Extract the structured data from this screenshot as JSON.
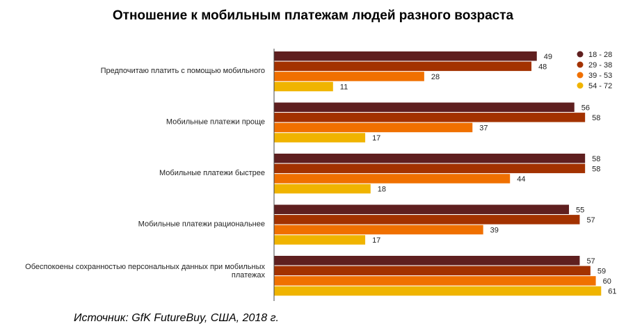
{
  "chart_data": {
    "type": "bar",
    "orientation": "horizontal",
    "title": "Отношение к мобильным платежам людей разного возраста",
    "categories": [
      [
        "Предпочитаю платить с помощью мобильного"
      ],
      [
        "Мобильные платежи проще"
      ],
      [
        "Мобильные платежи быстрее"
      ],
      [
        "Мобильные платежи рациональнее"
      ],
      [
        "Обеспокоены сохранностью персональных данных при мобильных",
        "платежах"
      ]
    ],
    "series": [
      {
        "name": "18 - 28",
        "color": "#5f1f1f",
        "values": [
          49,
          56,
          58,
          55,
          57
        ]
      },
      {
        "name": "29 - 38",
        "color": "#a33200",
        "values": [
          48,
          58,
          58,
          57,
          59
        ]
      },
      {
        "name": "39 - 53",
        "color": "#f07000",
        "values": [
          28,
          37,
          44,
          39,
          60
        ]
      },
      {
        "name": "54 - 72",
        "color": "#f0b400",
        "values": [
          11,
          17,
          18,
          17,
          61
        ]
      }
    ],
    "xlim": [
      0,
      62
    ],
    "grid": false,
    "legend_position": "top-right"
  },
  "source": "Источник: GfK FutureBuy, США, 2018 г."
}
